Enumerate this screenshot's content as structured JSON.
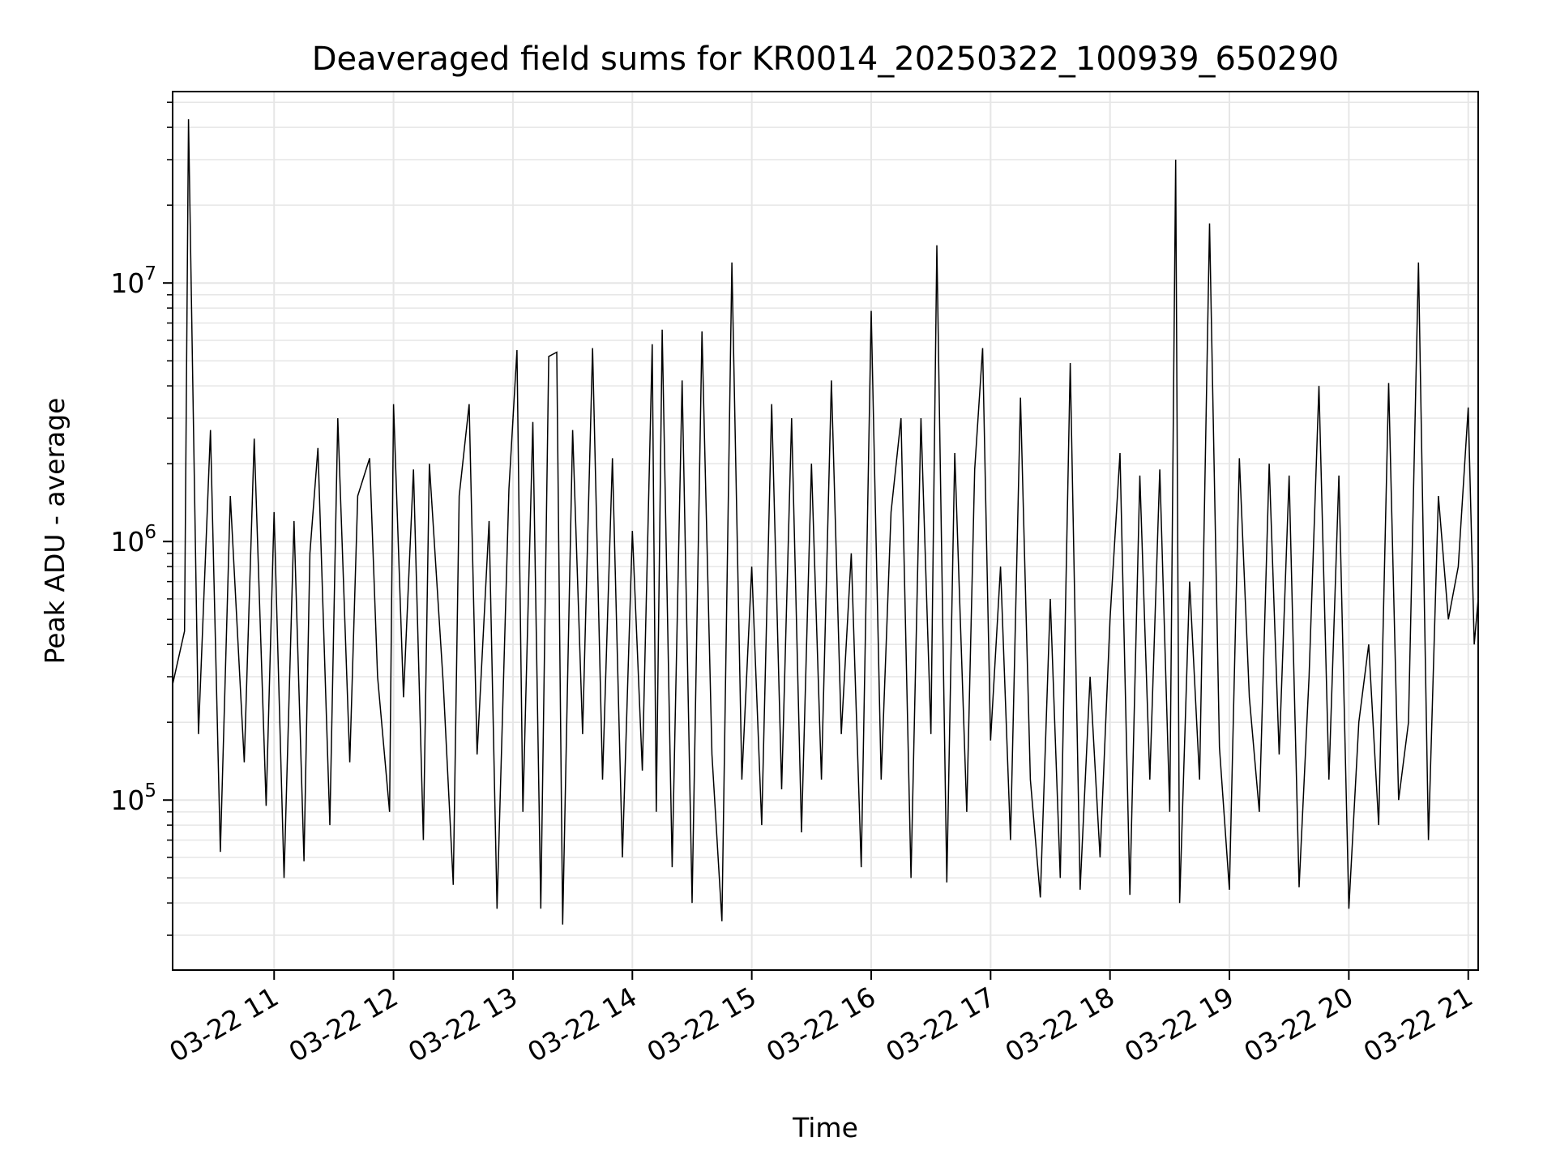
{
  "chart_data": {
    "type": "line",
    "title": "Deaveraged field sums for KR0014_20250322_100939_650290",
    "xlabel": "Time",
    "ylabel": "Peak ADU - average",
    "yscale": "log",
    "xlim": [
      "2025-03-22 10:09",
      "2025-03-22 21:05"
    ],
    "ylim": [
      22000,
      55000000
    ],
    "x_ticks": [
      {
        "t": "2025-03-22 11:00",
        "label": "03-22 11"
      },
      {
        "t": "2025-03-22 12:00",
        "label": "03-22 12"
      },
      {
        "t": "2025-03-22 13:00",
        "label": "03-22 13"
      },
      {
        "t": "2025-03-22 14:00",
        "label": "03-22 14"
      },
      {
        "t": "2025-03-22 15:00",
        "label": "03-22 15"
      },
      {
        "t": "2025-03-22 16:00",
        "label": "03-22 16"
      },
      {
        "t": "2025-03-22 17:00",
        "label": "03-22 17"
      },
      {
        "t": "2025-03-22 18:00",
        "label": "03-22 18"
      },
      {
        "t": "2025-03-22 19:00",
        "label": "03-22 19"
      },
      {
        "t": "2025-03-22 20:00",
        "label": "03-22 20"
      },
      {
        "t": "2025-03-22 21:00",
        "label": "03-22 21"
      }
    ],
    "y_ticks": [
      {
        "value": 100000,
        "base": "10",
        "exp": "5"
      },
      {
        "value": 1000000,
        "base": "10",
        "exp": "6"
      },
      {
        "value": 10000000,
        "base": "10",
        "exp": "7"
      }
    ],
    "grid": true,
    "legend": "none",
    "line_color": "#000000",
    "grid_color": "#e6e6e6",
    "series": [
      {
        "points": [
          [
            "2025-03-22 10:09",
            280000
          ],
          [
            "2025-03-22 10:15",
            450000
          ],
          [
            "2025-03-22 10:17",
            43000000
          ],
          [
            "2025-03-22 10:22",
            180000
          ],
          [
            "2025-03-22 10:28",
            2700000
          ],
          [
            "2025-03-22 10:33",
            63000
          ],
          [
            "2025-03-22 10:38",
            1500000
          ],
          [
            "2025-03-22 10:45",
            140000
          ],
          [
            "2025-03-22 10:50",
            2500000
          ],
          [
            "2025-03-22 10:56",
            95000
          ],
          [
            "2025-03-22 11:00",
            1300000
          ],
          [
            "2025-03-22 11:05",
            50000
          ],
          [
            "2025-03-22 11:10",
            1200000
          ],
          [
            "2025-03-22 11:15",
            58000
          ],
          [
            "2025-03-22 11:18",
            900000
          ],
          [
            "2025-03-22 11:22",
            2300000
          ],
          [
            "2025-03-22 11:28",
            80000
          ],
          [
            "2025-03-22 11:32",
            3000000
          ],
          [
            "2025-03-22 11:38",
            140000
          ],
          [
            "2025-03-22 11:42",
            1500000
          ],
          [
            "2025-03-22 11:48",
            2100000
          ],
          [
            "2025-03-22 11:52",
            300000
          ],
          [
            "2025-03-22 11:58",
            90000
          ],
          [
            "2025-03-22 12:00",
            3400000
          ],
          [
            "2025-03-22 12:05",
            250000
          ],
          [
            "2025-03-22 12:10",
            1900000
          ],
          [
            "2025-03-22 12:15",
            70000
          ],
          [
            "2025-03-22 12:18",
            2000000
          ],
          [
            "2025-03-22 12:25",
            280000
          ],
          [
            "2025-03-22 12:30",
            47000
          ],
          [
            "2025-03-22 12:33",
            1500000
          ],
          [
            "2025-03-22 12:38",
            3400000
          ],
          [
            "2025-03-22 12:42",
            150000
          ],
          [
            "2025-03-22 12:48",
            1200000
          ],
          [
            "2025-03-22 12:52",
            38000
          ],
          [
            "2025-03-22 12:58",
            1600000
          ],
          [
            "2025-03-22 13:02",
            5500000
          ],
          [
            "2025-03-22 13:05",
            90000
          ],
          [
            "2025-03-22 13:10",
            2900000
          ],
          [
            "2025-03-22 13:14",
            38000
          ],
          [
            "2025-03-22 13:18",
            5200000
          ],
          [
            "2025-03-22 13:22",
            5400000
          ],
          [
            "2025-03-22 13:25",
            33000
          ],
          [
            "2025-03-22 13:30",
            2700000
          ],
          [
            "2025-03-22 13:35",
            180000
          ],
          [
            "2025-03-22 13:40",
            5600000
          ],
          [
            "2025-03-22 13:45",
            120000
          ],
          [
            "2025-03-22 13:50",
            2100000
          ],
          [
            "2025-03-22 13:55",
            60000
          ],
          [
            "2025-03-22 14:00",
            1100000
          ],
          [
            "2025-03-22 14:05",
            130000
          ],
          [
            "2025-03-22 14:10",
            5800000
          ],
          [
            "2025-03-22 14:12",
            90000
          ],
          [
            "2025-03-22 14:15",
            6600000
          ],
          [
            "2025-03-22 14:20",
            55000
          ],
          [
            "2025-03-22 14:25",
            4200000
          ],
          [
            "2025-03-22 14:30",
            40000
          ],
          [
            "2025-03-22 14:35",
            6500000
          ],
          [
            "2025-03-22 14:40",
            150000
          ],
          [
            "2025-03-22 14:45",
            34000
          ],
          [
            "2025-03-22 14:50",
            12000000
          ],
          [
            "2025-03-22 14:55",
            120000
          ],
          [
            "2025-03-22 15:00",
            800000
          ],
          [
            "2025-03-22 15:05",
            80000
          ],
          [
            "2025-03-22 15:10",
            3400000
          ],
          [
            "2025-03-22 15:15",
            110000
          ],
          [
            "2025-03-22 15:20",
            3000000
          ],
          [
            "2025-03-22 15:25",
            75000
          ],
          [
            "2025-03-22 15:30",
            2000000
          ],
          [
            "2025-03-22 15:35",
            120000
          ],
          [
            "2025-03-22 15:40",
            4200000
          ],
          [
            "2025-03-22 15:45",
            180000
          ],
          [
            "2025-03-22 15:50",
            900000
          ],
          [
            "2025-03-22 15:55",
            55000
          ],
          [
            "2025-03-22 16:00",
            7800000
          ],
          [
            "2025-03-22 16:05",
            120000
          ],
          [
            "2025-03-22 16:10",
            1300000
          ],
          [
            "2025-03-22 16:15",
            3000000
          ],
          [
            "2025-03-22 16:20",
            50000
          ],
          [
            "2025-03-22 16:25",
            3000000
          ],
          [
            "2025-03-22 16:30",
            180000
          ],
          [
            "2025-03-22 16:33",
            14000000
          ],
          [
            "2025-03-22 16:38",
            48000
          ],
          [
            "2025-03-22 16:42",
            2200000
          ],
          [
            "2025-03-22 16:48",
            90000
          ],
          [
            "2025-03-22 16:52",
            1900000
          ],
          [
            "2025-03-22 16:56",
            5600000
          ],
          [
            "2025-03-22 17:00",
            170000
          ],
          [
            "2025-03-22 17:05",
            800000
          ],
          [
            "2025-03-22 17:10",
            70000
          ],
          [
            "2025-03-22 17:15",
            3600000
          ],
          [
            "2025-03-22 17:20",
            120000
          ],
          [
            "2025-03-22 17:25",
            42000
          ],
          [
            "2025-03-22 17:30",
            600000
          ],
          [
            "2025-03-22 17:35",
            50000
          ],
          [
            "2025-03-22 17:40",
            4900000
          ],
          [
            "2025-03-22 17:45",
            45000
          ],
          [
            "2025-03-22 17:50",
            300000
          ],
          [
            "2025-03-22 17:55",
            60000
          ],
          [
            "2025-03-22 18:00",
            500000
          ],
          [
            "2025-03-22 18:05",
            2200000
          ],
          [
            "2025-03-22 18:10",
            43000
          ],
          [
            "2025-03-22 18:15",
            1800000
          ],
          [
            "2025-03-22 18:20",
            120000
          ],
          [
            "2025-03-22 18:25",
            1900000
          ],
          [
            "2025-03-22 18:30",
            90000
          ],
          [
            "2025-03-22 18:33",
            30000000
          ],
          [
            "2025-03-22 18:35",
            40000
          ],
          [
            "2025-03-22 18:40",
            700000
          ],
          [
            "2025-03-22 18:45",
            120000
          ],
          [
            "2025-03-22 18:50",
            17000000
          ],
          [
            "2025-03-22 18:55",
            160000
          ],
          [
            "2025-03-22 19:00",
            45000
          ],
          [
            "2025-03-22 19:05",
            2100000
          ],
          [
            "2025-03-22 19:10",
            250000
          ],
          [
            "2025-03-22 19:15",
            90000
          ],
          [
            "2025-03-22 19:20",
            2000000
          ],
          [
            "2025-03-22 19:25",
            150000
          ],
          [
            "2025-03-22 19:30",
            1800000
          ],
          [
            "2025-03-22 19:35",
            46000
          ],
          [
            "2025-03-22 19:40",
            300000
          ],
          [
            "2025-03-22 19:45",
            4000000
          ],
          [
            "2025-03-22 19:50",
            120000
          ],
          [
            "2025-03-22 19:55",
            1800000
          ],
          [
            "2025-03-22 20:00",
            38000
          ],
          [
            "2025-03-22 20:05",
            200000
          ],
          [
            "2025-03-22 20:10",
            400000
          ],
          [
            "2025-03-22 20:15",
            80000
          ],
          [
            "2025-03-22 20:20",
            4100000
          ],
          [
            "2025-03-22 20:25",
            100000
          ],
          [
            "2025-03-22 20:30",
            200000
          ],
          [
            "2025-03-22 20:35",
            12000000
          ],
          [
            "2025-03-22 20:40",
            70000
          ],
          [
            "2025-03-22 20:45",
            1500000
          ],
          [
            "2025-03-22 20:50",
            500000
          ],
          [
            "2025-03-22 20:55",
            800000
          ],
          [
            "2025-03-22 21:00",
            3300000
          ],
          [
            "2025-03-22 21:03",
            400000
          ],
          [
            "2025-03-22 21:05",
            600000
          ]
        ]
      }
    ]
  }
}
